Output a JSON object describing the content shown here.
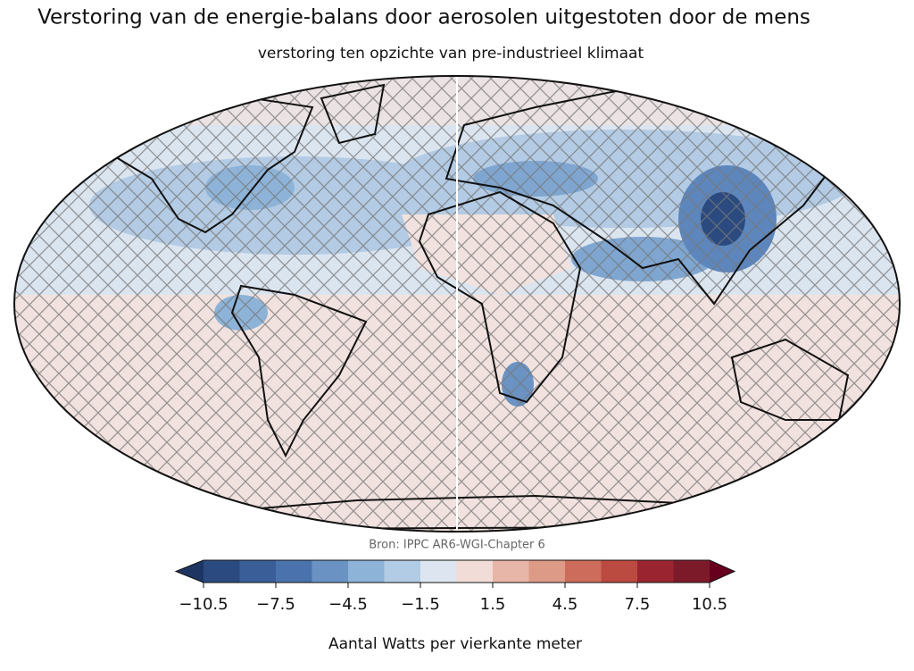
{
  "title": "Verstoring van de energie-balans door aerosolen uitgestoten door de mens",
  "subtitle": "verstoring ten opzichte van pre-industrieel klimaat",
  "source": "Bron: IPPC AR6-WGI-Chapter 6",
  "colorbar": {
    "label": "Aantal Watts per vierkante meter",
    "vlim": [
      -10.5,
      10.5
    ],
    "colors": [
      "#2b4b80",
      "#3a5e98",
      "#4a73ad",
      "#6a93c4",
      "#8db3d8",
      "#b2cce5",
      "#dde6f0",
      "#f2dcd8",
      "#e8b6a8",
      "#dd9a86",
      "#cd6c5a",
      "#bb4a41",
      "#9a2530",
      "#7d1a2a"
    ],
    "under_color": "#1e3463",
    "over_color": "#67001f",
    "ticks": [
      {
        "value": -10.5,
        "label": "−10.5"
      },
      {
        "value": -7.5,
        "label": "−7.5"
      },
      {
        "value": -4.5,
        "label": "−4.5"
      },
      {
        "value": -1.5,
        "label": "−1.5"
      },
      1.5,
      4.5,
      7.5,
      10.5
    ]
  }
}
